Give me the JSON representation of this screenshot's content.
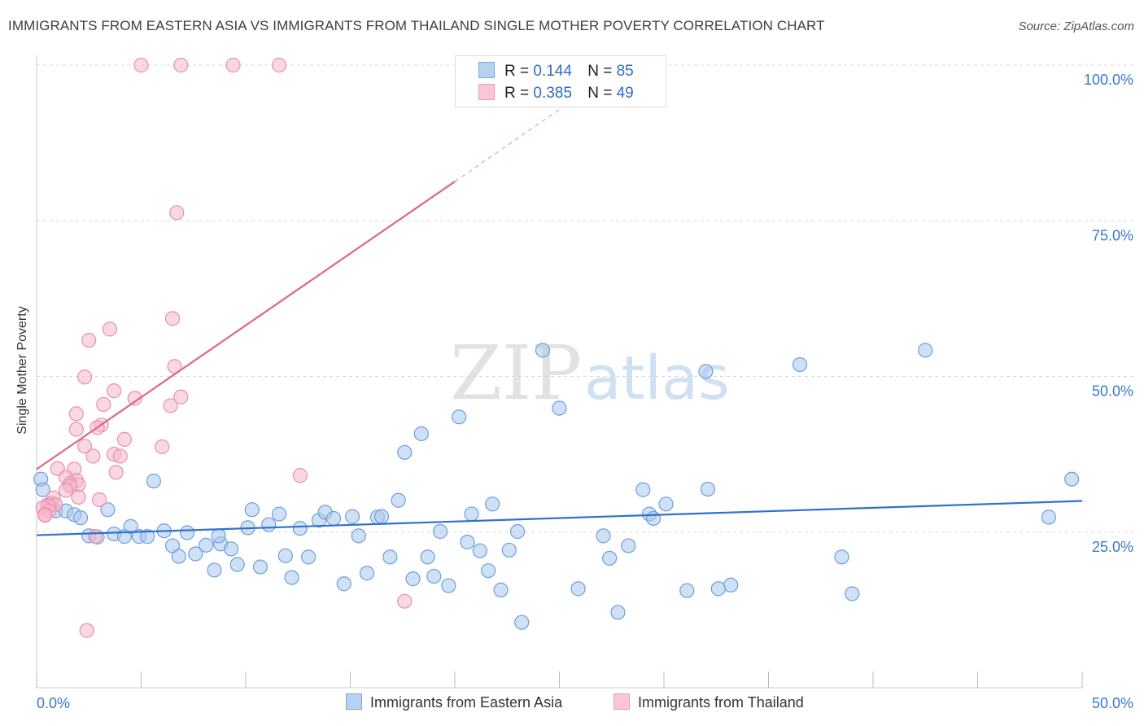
{
  "title": "IMMIGRANTS FROM EASTERN ASIA VS IMMIGRANTS FROM THAILAND SINGLE MOTHER POVERTY CORRELATION CHART",
  "source": "Source: ZipAtlas.com",
  "watermark": {
    "zip": "ZIP",
    "atlas": "atlas"
  },
  "legend": {
    "r_label": "R =",
    "n_label": "N =",
    "rows": [
      {
        "r": "0.144",
        "n": "85"
      },
      {
        "r": "0.385",
        "n": "49"
      }
    ]
  },
  "bottom_legend": [
    "Immigrants from Eastern Asia",
    "Immigrants from Thailand"
  ],
  "colors": {
    "blue_fill": "#a9c8ef",
    "blue_stroke": "#6d9fdc",
    "blue_line": "#2f72cc",
    "pink_fill": "#f6b8cb",
    "pink_stroke": "#ea8fae",
    "pink_line": "#e0628f",
    "tick_text": "#3a78c9",
    "grid": "#d9d9d9"
  },
  "chart_data": {
    "type": "scatter",
    "xlabel": "",
    "ylabel": "Single Mother Poverty",
    "xlim": [
      0,
      50
    ],
    "ylim": [
      0,
      100
    ],
    "x_tick_labels": [
      "0.0%",
      "50.0%"
    ],
    "y_ticks": [
      25,
      50,
      75,
      100
    ],
    "y_tick_labels": [
      "25.0%",
      "50.0%",
      "75.0%",
      "100.0%"
    ],
    "grid": "horizontal dashed",
    "series": [
      {
        "name": "Immigrants from Eastern Asia",
        "color": "#6d9fdc",
        "trend": {
          "x": [
            0,
            50
          ],
          "y": [
            24.5,
            30.0
          ]
        },
        "points": [
          [
            0.2,
            33.5
          ],
          [
            0.3,
            31.8
          ],
          [
            0.9,
            28.4
          ],
          [
            1.4,
            28.4
          ],
          [
            1.8,
            27.8
          ],
          [
            2.1,
            27.3
          ],
          [
            2.5,
            24.4
          ],
          [
            2.9,
            24.2
          ],
          [
            3.4,
            28.6
          ],
          [
            3.7,
            24.7
          ],
          [
            4.2,
            24.3
          ],
          [
            4.5,
            25.9
          ],
          [
            4.9,
            24.3
          ],
          [
            5.3,
            24.3
          ],
          [
            5.6,
            33.2
          ],
          [
            6.1,
            25.2
          ],
          [
            6.5,
            22.8
          ],
          [
            6.8,
            21.1
          ],
          [
            7.2,
            24.9
          ],
          [
            7.6,
            21.5
          ],
          [
            8.1,
            22.9
          ],
          [
            8.5,
            18.9
          ],
          [
            8.8,
            23.1
          ],
          [
            9.3,
            22.3
          ],
          [
            9.6,
            19.8
          ],
          [
            10.1,
            25.7
          ],
          [
            10.3,
            28.6
          ],
          [
            10.7,
            19.4
          ],
          [
            11.1,
            26.2
          ],
          [
            11.6,
            27.9
          ],
          [
            11.9,
            21.2
          ],
          [
            12.2,
            17.7
          ],
          [
            12.6,
            25.6
          ],
          [
            13.0,
            21.0
          ],
          [
            13.5,
            26.9
          ],
          [
            13.8,
            28.2
          ],
          [
            14.2,
            27.2
          ],
          [
            14.7,
            16.7
          ],
          [
            15.1,
            27.5
          ],
          [
            15.4,
            24.4
          ],
          [
            15.8,
            18.4
          ],
          [
            16.3,
            27.4
          ],
          [
            16.5,
            27.5
          ],
          [
            16.9,
            21.0
          ],
          [
            17.3,
            30.1
          ],
          [
            17.6,
            37.8
          ],
          [
            18.0,
            17.5
          ],
          [
            18.4,
            40.8
          ],
          [
            18.7,
            21.0
          ],
          [
            19.0,
            17.9
          ],
          [
            19.3,
            25.1
          ],
          [
            19.7,
            16.4
          ],
          [
            20.2,
            43.5
          ],
          [
            20.6,
            23.4
          ],
          [
            20.8,
            27.9
          ],
          [
            21.2,
            22.0
          ],
          [
            21.6,
            18.8
          ],
          [
            21.8,
            29.5
          ],
          [
            22.2,
            15.7
          ],
          [
            22.6,
            22.1
          ],
          [
            23.0,
            25.1
          ],
          [
            23.2,
            10.5
          ],
          [
            24.2,
            54.2
          ],
          [
            25.0,
            44.9
          ],
          [
            25.9,
            15.9
          ],
          [
            27.1,
            24.4
          ],
          [
            27.4,
            20.8
          ],
          [
            27.8,
            12.1
          ],
          [
            28.3,
            22.8
          ],
          [
            29.0,
            31.8
          ],
          [
            29.3,
            27.9
          ],
          [
            29.5,
            27.2
          ],
          [
            30.1,
            29.5
          ],
          [
            31.1,
            15.6
          ],
          [
            32.1,
            31.9
          ],
          [
            32.0,
            50.8
          ],
          [
            32.6,
            15.9
          ],
          [
            33.2,
            16.5
          ],
          [
            36.5,
            51.9
          ],
          [
            38.5,
            21.0
          ],
          [
            39.0,
            15.1
          ],
          [
            42.5,
            54.2
          ],
          [
            48.4,
            27.4
          ],
          [
            49.5,
            33.5
          ],
          [
            8.7,
            24.4
          ]
        ]
      },
      {
        "name": "Immigrants from Thailand",
        "color": "#ea8fae",
        "trend": {
          "x": [
            0,
            20
          ],
          "y": [
            35.1,
            81.3
          ]
        },
        "trend_dashed": {
          "x": [
            20,
            27
          ],
          "y": [
            81.3,
            97.5
          ]
        },
        "points": [
          [
            5.0,
            100
          ],
          [
            6.9,
            100
          ],
          [
            9.4,
            100
          ],
          [
            11.6,
            100
          ],
          [
            6.7,
            76.3
          ],
          [
            6.5,
            59.3
          ],
          [
            3.5,
            57.6
          ],
          [
            2.5,
            55.8
          ],
          [
            2.3,
            49.9
          ],
          [
            6.6,
            51.6
          ],
          [
            3.7,
            47.7
          ],
          [
            4.7,
            46.5
          ],
          [
            6.4,
            45.3
          ],
          [
            3.2,
            45.5
          ],
          [
            1.9,
            44.0
          ],
          [
            6.9,
            46.7
          ],
          [
            3.1,
            42.2
          ],
          [
            2.9,
            41.8
          ],
          [
            1.9,
            41.5
          ],
          [
            4.2,
            39.9
          ],
          [
            2.3,
            38.8
          ],
          [
            6.0,
            38.7
          ],
          [
            3.7,
            37.5
          ],
          [
            4.0,
            37.2
          ],
          [
            2.7,
            37.2
          ],
          [
            1.0,
            35.2
          ],
          [
            1.8,
            35.1
          ],
          [
            3.8,
            34.6
          ],
          [
            12.6,
            34.1
          ],
          [
            1.4,
            33.8
          ],
          [
            1.9,
            33.3
          ],
          [
            1.6,
            32.8
          ],
          [
            2.0,
            32.6
          ],
          [
            1.6,
            32.4
          ],
          [
            1.4,
            31.7
          ],
          [
            0.8,
            30.5
          ],
          [
            3.0,
            30.2
          ],
          [
            0.7,
            29.6
          ],
          [
            0.5,
            29.3
          ],
          [
            0.9,
            29.4
          ],
          [
            0.6,
            29.2
          ],
          [
            0.3,
            28.9
          ],
          [
            0.6,
            28.4
          ],
          [
            0.4,
            27.8
          ],
          [
            0.4,
            27.7
          ],
          [
            2.8,
            24.3
          ],
          [
            17.6,
            13.9
          ],
          [
            2.4,
            9.2
          ],
          [
            2.0,
            30.6
          ]
        ]
      }
    ]
  }
}
